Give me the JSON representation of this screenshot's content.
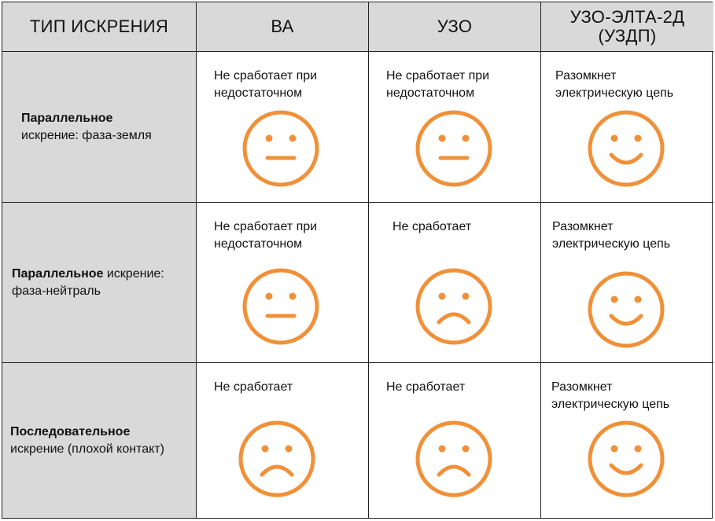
{
  "colors": {
    "face": "#f0913a",
    "header_bg": "#d9d9d9",
    "border": "#222222"
  },
  "header": {
    "col0": "ТИП ИСКРЕНИЯ",
    "col1": "ВА",
    "col2": "УЗО",
    "col3_line1": "УЗО-ЭЛТА-2Д",
    "col3_line2": "(УЗДП)"
  },
  "rows": [
    {
      "type_bold": "Параллельное",
      "type_rest": "искрение: фаза-земля",
      "cells": [
        {
          "text": "Не сработает при\nнедостаточном",
          "face": "neutral-face-icon"
        },
        {
          "text": "Не сработает при\nнедостаточном",
          "face": "neutral-face-icon"
        },
        {
          "text": "Разомкнет\nэлектрическую цепь",
          "face": "smiling-face-icon"
        }
      ]
    },
    {
      "type_bold": "Параллельное",
      "type_rest": " искрение:\nфаза-нейтраль",
      "cells": [
        {
          "text": "Не сработает при\nнедостаточном",
          "face": "neutral-face-icon"
        },
        {
          "text": "Не сработает",
          "face": "sad-face-icon"
        },
        {
          "text": "Разомкнет\nэлектрическую цепь",
          "face": "smiling-face-icon"
        }
      ]
    },
    {
      "type_bold": "Последовательное",
      "type_rest": "искрение (плохой контакт)",
      "cells": [
        {
          "text": "Не сработает",
          "face": "sad-face-icon"
        },
        {
          "text": "Не сработает",
          "face": "sad-face-icon"
        },
        {
          "text": "Разомкнет\nэлектрическую цепь",
          "face": "smiling-face-icon"
        }
      ]
    }
  ]
}
